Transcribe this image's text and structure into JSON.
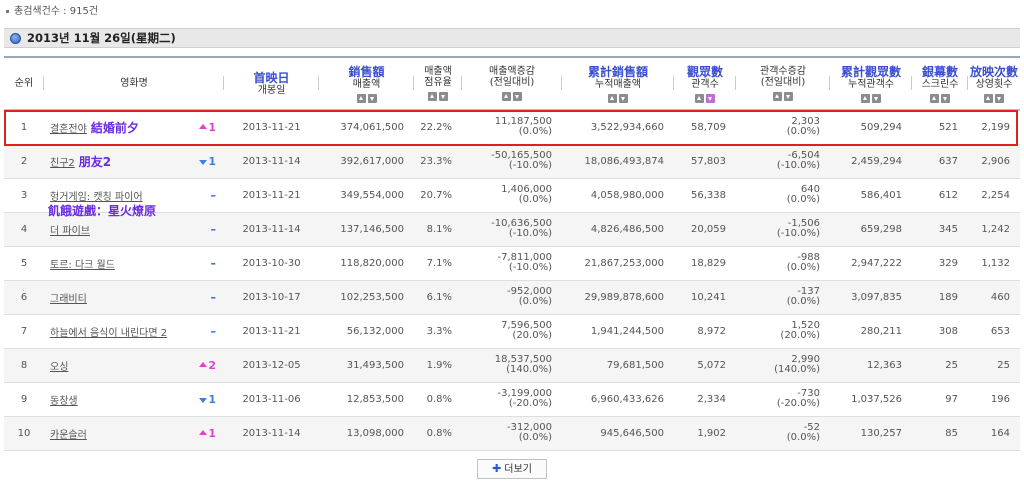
{
  "summary": {
    "total_label": "총검색건수 : 915건"
  },
  "date_bar": {
    "text": "2013년 11월 26일(星期二)"
  },
  "columns": [
    {
      "id": "rank",
      "kr": "순위"
    },
    {
      "id": "title",
      "kr": "영화명"
    },
    {
      "id": "release",
      "cjk": "首映日",
      "kr": "개봉일"
    },
    {
      "id": "sales",
      "cjk": "銷售額",
      "kr": "매출액"
    },
    {
      "id": "share",
      "kr": "매출액\n점유율"
    },
    {
      "id": "sales_change",
      "kr": "매출액증감\n(전일대비)"
    },
    {
      "id": "cum_sales",
      "cjk": "累計銷售額",
      "kr": "누적매출액"
    },
    {
      "id": "audience",
      "cjk": "觀眾數",
      "kr": "관객수"
    },
    {
      "id": "aud_change",
      "kr": "관객수증감\n(전일대비)"
    },
    {
      "id": "cum_audience",
      "cjk": "累計觀眾數",
      "kr": "누적관객수"
    },
    {
      "id": "screens",
      "cjk": "銀幕數",
      "kr": "스크린수"
    },
    {
      "id": "shows",
      "cjk": "放映次數",
      "kr": "상영횟수"
    }
  ],
  "rows": [
    {
      "rank": "1",
      "title": "결혼전야",
      "zh": "結婚前夕",
      "change_dir": "up",
      "change": "1",
      "release": "2013-11-21",
      "sales": "374,061,500",
      "share": "22.2%",
      "sales_change_a": "11,187,500",
      "sales_change_b": "(0.0%)",
      "cum_sales": "3,522,934,660",
      "audience": "58,709",
      "aud_change_a": "2,303",
      "aud_change_b": "(0.0%)",
      "cum_audience": "509,294",
      "screens": "521",
      "shows": "2,199"
    },
    {
      "rank": "2",
      "title": "친구2",
      "zh": "朋友2",
      "change_dir": "down",
      "change": "1",
      "release": "2013-11-14",
      "sales": "392,617,000",
      "share": "23.3%",
      "sales_change_a": "-50,165,500",
      "sales_change_b": "(-10.0%)",
      "cum_sales": "18,086,493,874",
      "audience": "57,803",
      "aud_change_a": "-6,504",
      "aud_change_b": "(-10.0%)",
      "cum_audience": "2,459,294",
      "screens": "637",
      "shows": "2,906"
    },
    {
      "rank": "3",
      "title": "헝거게임: 캣칭 파이어",
      "zh": "",
      "change_dir": "same",
      "change": "–",
      "release": "2013-11-21",
      "sales": "349,554,000",
      "share": "20.7%",
      "sales_change_a": "1,406,000",
      "sales_change_b": "(0.0%)",
      "cum_sales": "4,058,980,000",
      "audience": "56,338",
      "aud_change_a": "640",
      "aud_change_b": "(0.0%)",
      "cum_audience": "586,401",
      "screens": "612",
      "shows": "2,254"
    },
    {
      "rank": "4",
      "title": "더 파이브",
      "zh": "",
      "change_dir": "same",
      "change": "–",
      "release": "2013-11-14",
      "sales": "137,146,500",
      "share": "8.1%",
      "sales_change_a": "-10,636,500",
      "sales_change_b": "(-10.0%)",
      "cum_sales": "4,826,486,500",
      "audience": "20,059",
      "aud_change_a": "-1,506",
      "aud_change_b": "(-10.0%)",
      "cum_audience": "659,298",
      "screens": "345",
      "shows": "1,242"
    },
    {
      "rank": "5",
      "title": "토르: 다크 월드",
      "zh": "",
      "change_dir": "same",
      "change": "–",
      "release": "2013-10-30",
      "sales": "118,820,000",
      "share": "7.1%",
      "sales_change_a": "-7,811,000",
      "sales_change_b": "(-10.0%)",
      "cum_sales": "21,867,253,000",
      "audience": "18,829",
      "aud_change_a": "-988",
      "aud_change_b": "(0.0%)",
      "cum_audience": "2,947,222",
      "screens": "329",
      "shows": "1,132"
    },
    {
      "rank": "6",
      "title": "그래비티",
      "zh": "",
      "change_dir": "same",
      "change": "–",
      "release": "2013-10-17",
      "sales": "102,253,500",
      "share": "6.1%",
      "sales_change_a": "-952,000",
      "sales_change_b": "(0.0%)",
      "cum_sales": "29,989,878,600",
      "audience": "10,241",
      "aud_change_a": "-137",
      "aud_change_b": "(0.0%)",
      "cum_audience": "3,097,835",
      "screens": "189",
      "shows": "460"
    },
    {
      "rank": "7",
      "title": "하늘에서 음식이 내린다면 2",
      "zh": "",
      "change_dir": "same",
      "change": "–",
      "release": "2013-11-21",
      "sales": "56,132,000",
      "share": "3.3%",
      "sales_change_a": "7,596,500",
      "sales_change_b": "(20.0%)",
      "cum_sales": "1,941,244,500",
      "audience": "8,972",
      "aud_change_a": "1,520",
      "aud_change_b": "(20.0%)",
      "cum_audience": "280,211",
      "screens": "308",
      "shows": "653"
    },
    {
      "rank": "8",
      "title": "오싱",
      "zh": "",
      "change_dir": "up",
      "change": "2",
      "release": "2013-12-05",
      "sales": "31,493,500",
      "share": "1.9%",
      "sales_change_a": "18,537,500",
      "sales_change_b": "(140.0%)",
      "cum_sales": "79,681,500",
      "audience": "5,072",
      "aud_change_a": "2,990",
      "aud_change_b": "(140.0%)",
      "cum_audience": "12,363",
      "screens": "25",
      "shows": "25"
    },
    {
      "rank": "9",
      "title": "동창생",
      "zh": "",
      "change_dir": "down",
      "change": "1",
      "release": "2013-11-06",
      "sales": "12,853,500",
      "share": "0.8%",
      "sales_change_a": "-3,199,000",
      "sales_change_b": "(-20.0%)",
      "cum_sales": "6,960,433,626",
      "audience": "2,334",
      "aud_change_a": "-730",
      "aud_change_b": "(-20.0%)",
      "cum_audience": "1,037,526",
      "screens": "97",
      "shows": "196"
    },
    {
      "rank": "10",
      "title": "카운슬러",
      "zh": "",
      "change_dir": "up",
      "change": "1",
      "release": "2013-11-14",
      "sales": "13,098,000",
      "share": "0.8%",
      "sales_change_a": "-312,000",
      "sales_change_b": "(0.0%)",
      "cum_sales": "945,646,500",
      "audience": "1,902",
      "aud_change_a": "-52",
      "aud_change_b": "(0.0%)",
      "cum_audience": "130,257",
      "screens": "85",
      "shows": "164"
    }
  ],
  "annotations": {
    "row3_zh": "飢餓遊戲：星火燎原"
  },
  "more_button": {
    "label": "더보기"
  },
  "colors": {
    "cjk_header": "#3a4fd0",
    "zh_annotation": "#6a2cdf",
    "highlight_border": "#e02020",
    "rank_up": "#e43fd3",
    "rank_down": "#3c7fe0"
  }
}
